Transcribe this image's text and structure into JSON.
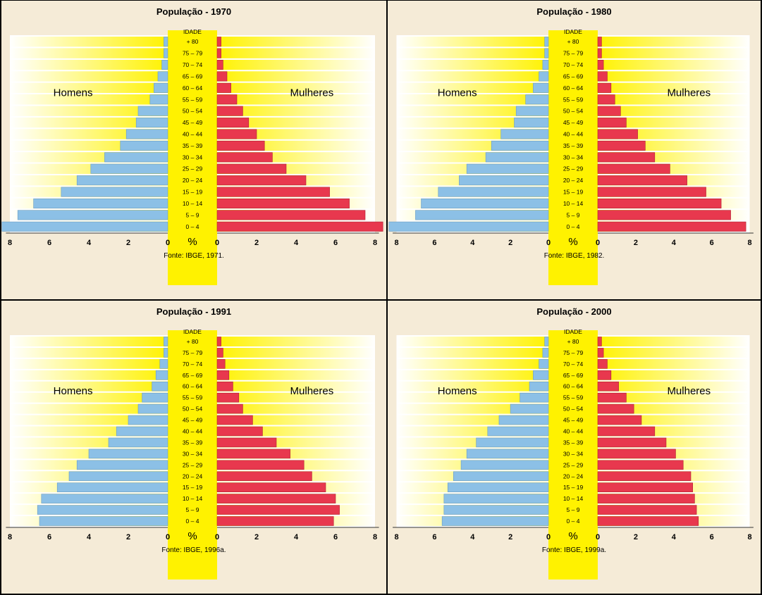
{
  "labels": {
    "idade": "IDADE",
    "homens": "Homens",
    "mulheres": "Mulheres",
    "percent": "%"
  },
  "age_groups": [
    "0 – 4",
    "5 – 9",
    "10 – 14",
    "15 – 19",
    "20 – 24",
    "25 – 29",
    "30 – 34",
    "35 – 39",
    "40 – 44",
    "45 – 49",
    "50 – 54",
    "55 – 59",
    "60 – 64",
    "65 – 69",
    "70 – 74",
    "75 – 79",
    "+ 80"
  ],
  "colors": {
    "men_bar": "#8cc0e6",
    "women_bar": "#e8384e",
    "center_band": "#fff200",
    "background": "#f5ebd7"
  },
  "chart_data": [
    {
      "type": "bar",
      "title": "População - 1970",
      "source": "Fonte: IBGE, 1971.",
      "x_ticks_left": [
        "8",
        "6",
        "4",
        "2",
        "0"
      ],
      "x_ticks_right": [
        "0",
        "2",
        "4",
        "6",
        "8"
      ],
      "xlim": [
        0,
        8
      ],
      "series": [
        {
          "name": "Homens",
          "values": [
            8.4,
            7.6,
            6.8,
            5.4,
            4.6,
            3.9,
            3.2,
            2.4,
            2.1,
            1.6,
            1.5,
            0.9,
            0.7,
            0.5,
            0.3,
            0.2,
            0.2
          ]
        },
        {
          "name": "Mulheres",
          "values": [
            8.4,
            7.5,
            6.7,
            5.7,
            4.5,
            3.5,
            2.8,
            2.4,
            2.0,
            1.6,
            1.3,
            1.0,
            0.7,
            0.5,
            0.3,
            0.2,
            0.2
          ]
        }
      ]
    },
    {
      "type": "bar",
      "title": "População - 1980",
      "source": "Fonte: IBGE, 1982.",
      "x_ticks_left": [
        "8",
        "6",
        "4",
        "2",
        "0"
      ],
      "x_ticks_right": [
        "0",
        "2",
        "4",
        "6",
        "8"
      ],
      "xlim": [
        0,
        8
      ],
      "series": [
        {
          "name": "Homens",
          "values": [
            8.4,
            7.0,
            6.7,
            5.8,
            4.7,
            4.3,
            3.3,
            3.0,
            2.5,
            1.8,
            1.7,
            1.2,
            0.8,
            0.5,
            0.3,
            0.2,
            0.2
          ]
        },
        {
          "name": "Mulheres",
          "values": [
            7.8,
            7.0,
            6.5,
            5.7,
            4.7,
            3.8,
            3.0,
            2.5,
            2.1,
            1.5,
            1.2,
            0.9,
            0.7,
            0.5,
            0.3,
            0.2,
            0.2
          ]
        }
      ]
    },
    {
      "type": "bar",
      "title": "População - 1991",
      "source": "Fonte: IBGE, 1996a.",
      "x_ticks_left": [
        "8",
        "6",
        "4",
        "2",
        "0"
      ],
      "x_ticks_right": [
        "0",
        "2",
        "4",
        "6",
        "8"
      ],
      "xlim": [
        0,
        8
      ],
      "series": [
        {
          "name": "Homens",
          "values": [
            6.5,
            6.6,
            6.4,
            5.6,
            5.0,
            4.6,
            4.0,
            3.0,
            2.6,
            2.0,
            1.5,
            1.3,
            0.8,
            0.6,
            0.4,
            0.2,
            0.2
          ]
        },
        {
          "name": "Mulheres",
          "values": [
            5.9,
            6.2,
            6.0,
            5.5,
            4.8,
            4.4,
            3.7,
            3.0,
            2.3,
            1.8,
            1.3,
            1.1,
            0.8,
            0.6,
            0.4,
            0.3,
            0.2
          ]
        }
      ]
    },
    {
      "type": "bar",
      "title": "População - 2000",
      "source": "Fonte: IBGE, 1999a.",
      "x_ticks_left": [
        "8",
        "6",
        "4",
        "2",
        "0"
      ],
      "x_ticks_right": [
        "0",
        "2",
        "4",
        "6",
        "8"
      ],
      "xlim": [
        0,
        8
      ],
      "series": [
        {
          "name": "Homens",
          "values": [
            5.6,
            5.5,
            5.5,
            5.3,
            5.0,
            4.6,
            4.3,
            3.8,
            3.2,
            2.6,
            2.0,
            1.5,
            1.0,
            0.8,
            0.5,
            0.3,
            0.2
          ]
        },
        {
          "name": "Mulheres",
          "values": [
            5.3,
            5.2,
            5.1,
            5.0,
            4.9,
            4.5,
            4.1,
            3.6,
            3.0,
            2.3,
            1.9,
            1.5,
            1.1,
            0.7,
            0.5,
            0.3,
            0.2
          ]
        }
      ]
    }
  ]
}
